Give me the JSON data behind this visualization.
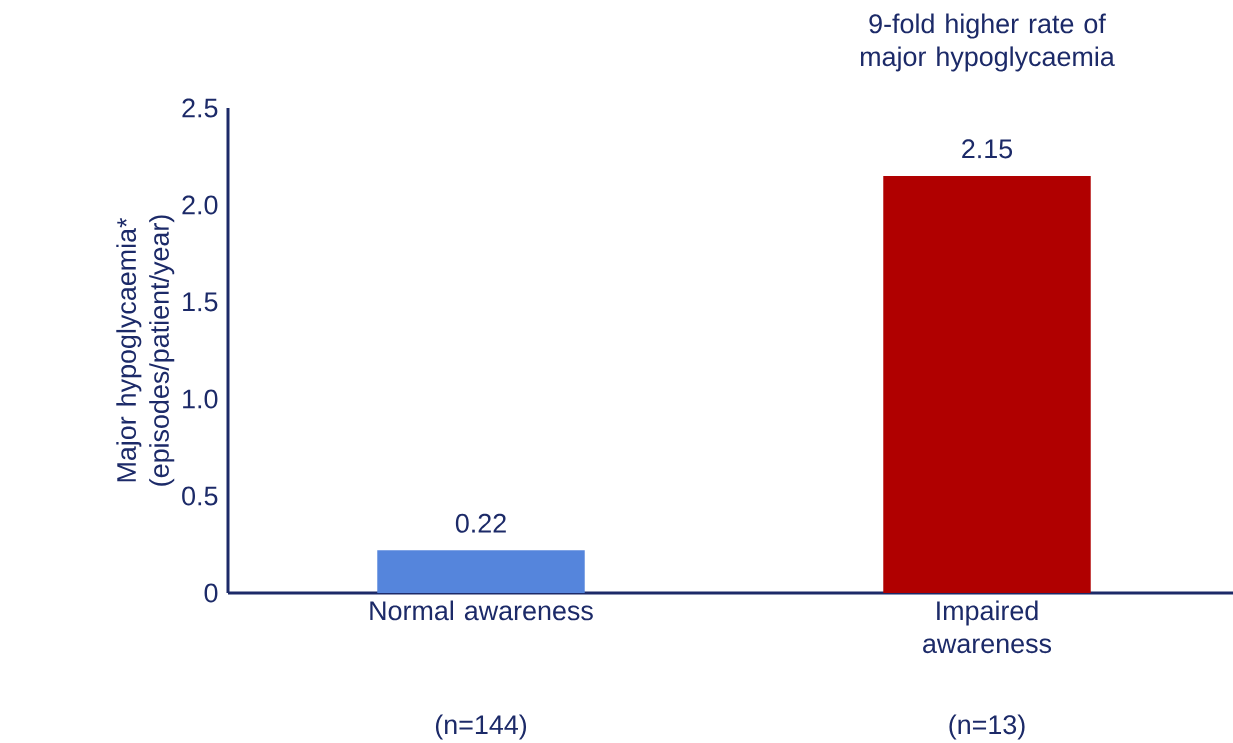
{
  "chart_data": {
    "type": "bar",
    "ylabel": "Major hypoglycaemia* (episodes/patient/year)",
    "categories": [
      "Normal awareness",
      "Impaired awareness"
    ],
    "values": [
      0.22,
      2.15
    ],
    "colors": [
      "#5585dc",
      "#b00000"
    ],
    "ylim": [
      0,
      2.5
    ],
    "yticks": [
      0,
      0.5,
      {
        "value": 1,
        "label": "1.0"
      },
      1.5,
      {
        "value": 2,
        "label": "2.0"
      },
      2.5
    ],
    "data_labels": true,
    "annotations": [
      "(n=144)",
      "(n=13)",
      "9-fold higher rate of major hypoglycaemia"
    ]
  }
}
